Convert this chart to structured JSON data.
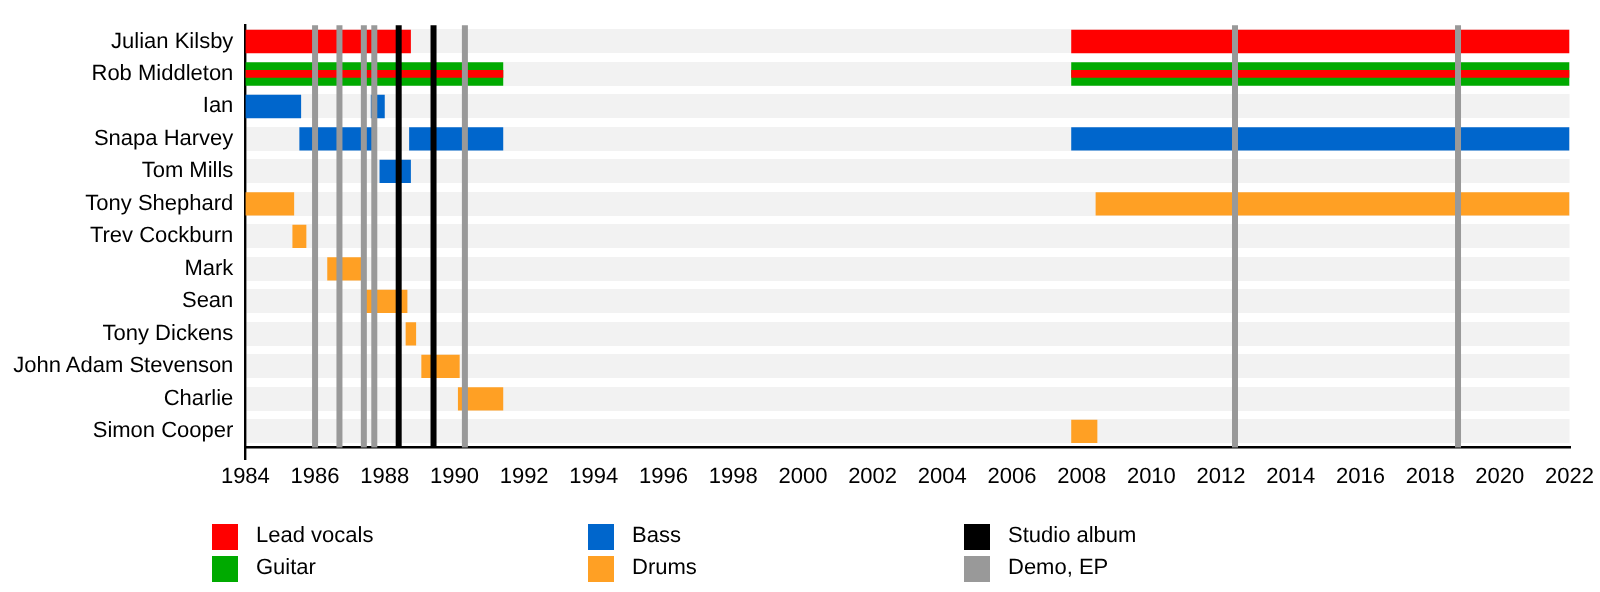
{
  "chart_data": {
    "type": "bar",
    "orientation": "horizontal",
    "categories": [
      "Julian Kilsby",
      "Rob Middleton",
      "Ian",
      "Snapa Harvey",
      "Tom Mills",
      "Tony Shephard",
      "Trev Cockburn",
      "Mark",
      "Sean",
      "Tony Dickens",
      "John Adam Stevenson",
      "Charlie",
      "Simon Cooper"
    ],
    "series": [
      {
        "name": "Lead vocals",
        "color": "#ff0000",
        "base": [
          1984,
          1984,
          null,
          null,
          null,
          null,
          null,
          null,
          null,
          null,
          null,
          null,
          null
        ],
        "values": [
          4.75,
          7.4,
          null,
          null,
          null,
          null,
          null,
          null,
          null,
          null,
          null,
          null,
          null
        ]
      },
      {
        "name": "Guitar",
        "color": "#00aa00",
        "base": [
          null,
          1984,
          null,
          null,
          null,
          null,
          null,
          null,
          null,
          null,
          null,
          null,
          null
        ],
        "values": [
          null,
          7.4,
          null,
          null,
          null,
          null,
          null,
          null,
          null,
          null,
          null,
          null,
          null
        ]
      },
      {
        "name": "Bass",
        "color": "#0066cc",
        "base": [
          null,
          null,
          1984,
          1985.55,
          1987.85,
          null,
          null,
          null,
          null,
          null,
          null,
          null,
          null
        ],
        "values": [
          null,
          null,
          1.6,
          2.1,
          0.9,
          null,
          null,
          null,
          null,
          null,
          null,
          null,
          null
        ]
      },
      {
        "name": "Drums",
        "color": "#ffa024",
        "base": [
          null,
          null,
          null,
          null,
          null,
          1984,
          1985.35,
          1986.35,
          1987.4,
          1988.6,
          1989.05,
          1990.1,
          2007.7
        ],
        "values": [
          null,
          null,
          null,
          null,
          null,
          1.4,
          0.4,
          1.1,
          1.25,
          0.3,
          1.1,
          1.3,
          0.75
        ]
      },
      {
        "color": "#ff0000",
        "base": [
          2007.7,
          2007.7,
          null,
          null,
          null,
          null,
          null,
          null,
          null,
          null,
          null,
          null,
          null
        ],
        "values": [
          14.3,
          14.3,
          null,
          null,
          null,
          null,
          null,
          null,
          null,
          null,
          null,
          null,
          null
        ]
      },
      {
        "color": "#00aa00",
        "base": [
          null,
          2007.7,
          null,
          null,
          null,
          null,
          null,
          null,
          null,
          null,
          null,
          null,
          null
        ],
        "values": [
          null,
          14.3,
          null,
          null,
          null,
          null,
          null,
          null,
          null,
          null,
          null,
          null,
          null
        ]
      },
      {
        "color": "#0066cc",
        "base": [
          null,
          null,
          1987.6,
          1988.7,
          null,
          null,
          null,
          null,
          null,
          null,
          null,
          null,
          null
        ],
        "values": [
          null,
          null,
          0.4,
          2.7,
          null,
          null,
          null,
          null,
          null,
          null,
          null,
          null,
          null
        ]
      },
      {
        "color": "#0066cc",
        "base": [
          null,
          null,
          null,
          2007.7,
          null,
          null,
          null,
          null,
          null,
          null,
          null,
          null,
          null
        ],
        "values": [
          null,
          null,
          null,
          14.3,
          null,
          null,
          null,
          null,
          null,
          null,
          null,
          null,
          null
        ]
      },
      {
        "color": "#ffa024",
        "base": [
          null,
          null,
          null,
          null,
          null,
          2008.4,
          null,
          null,
          null,
          null,
          null,
          null,
          null
        ],
        "values": [
          null,
          null,
          null,
          null,
          null,
          13.6,
          null,
          null,
          null,
          null,
          null,
          null,
          null
        ]
      }
    ],
    "xlim": [
      1984,
      2022
    ],
    "xticks": [
      1984,
      1986,
      1988,
      1990,
      1992,
      1994,
      1996,
      1998,
      2000,
      2002,
      2004,
      2006,
      2008,
      2010,
      2012,
      2014,
      2016,
      2018,
      2020,
      2022
    ],
    "ref_lines": [
      {
        "axis": "x",
        "value": 1988.4,
        "label": "Studio album",
        "color": "#000000"
      },
      {
        "axis": "x",
        "value": 1989.4,
        "color": "#000000"
      },
      {
        "axis": "x",
        "value": 1986.0,
        "label": "Demo, EP",
        "color": "#999999"
      },
      {
        "axis": "x",
        "value": 1986.7,
        "color": "#999999"
      },
      {
        "axis": "x",
        "value": 1987.4,
        "color": "#999999"
      },
      {
        "axis": "x",
        "value": 1987.7,
        "color": "#999999"
      },
      {
        "axis": "x",
        "value": 1990.3,
        "color": "#999999"
      },
      {
        "axis": "x",
        "value": 2012.4,
        "color": "#999999"
      },
      {
        "axis": "x",
        "value": 2018.8,
        "color": "#999999"
      }
    ],
    "grid": "y",
    "legend": "bottom"
  }
}
